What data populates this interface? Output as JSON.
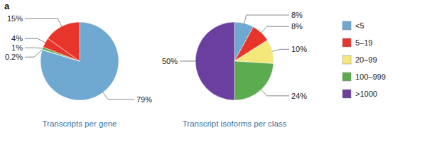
{
  "chart_data": [
    {
      "type": "pie",
      "title": "Transcripts per gene",
      "values": [
        79,
        0.2,
        1,
        4,
        15
      ],
      "value_labels": [
        "79%",
        "0.2%",
        "1%",
        "4%",
        "15%"
      ],
      "colors": [
        "#6fa8d0",
        "#84b8d8",
        "#5cab4e",
        "#e8352b",
        "#e8352b"
      ],
      "data_labels": true,
      "annotations": [
        "a"
      ]
    },
    {
      "type": "pie",
      "title": "Transcript isoforms per class",
      "categories": [
        "<5",
        "5–19",
        "20–99",
        "100–999",
        ">1000"
      ],
      "values": [
        8,
        8,
        10,
        24,
        50
      ],
      "value_labels": [
        "8%",
        "8%",
        "10%",
        "24%",
        "50%"
      ],
      "colors": [
        "#6fa8d0",
        "#e8352b",
        "#f5e87a",
        "#5cab4e",
        "#6b3fa0"
      ],
      "data_labels": true,
      "legend": "right"
    }
  ]
}
